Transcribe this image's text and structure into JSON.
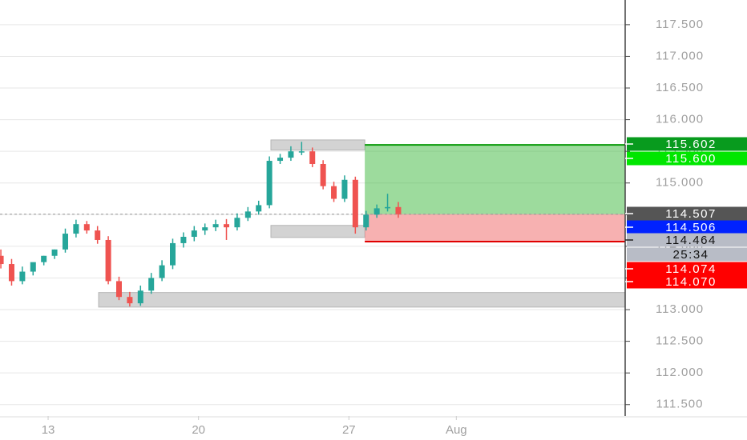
{
  "chart_data": {
    "type": "candlestick",
    "x": [
      10.8,
      11.3,
      11.8,
      12.3,
      12.8,
      13.3,
      13.8,
      14.3,
      14.8,
      15.3,
      15.8,
      16.3,
      16.8,
      17.3,
      17.8,
      18.3,
      18.8,
      19.3,
      19.8,
      20.3,
      20.8,
      21.3,
      21.8,
      22.3,
      22.8,
      23.3,
      23.8,
      24.3,
      24.8,
      25.3,
      25.8,
      26.3,
      26.8,
      27.3,
      27.8,
      28.3,
      28.8,
      29.3
    ],
    "open": [
      113.85,
      113.72,
      113.45,
      113.6,
      113.75,
      113.85,
      113.95,
      114.2,
      114.35,
      114.25,
      114.1,
      113.45,
      113.2,
      113.1,
      113.3,
      113.5,
      113.7,
      114.05,
      114.15,
      114.25,
      114.3,
      114.35,
      114.3,
      114.45,
      114.55,
      114.65,
      115.35,
      115.4,
      115.5,
      115.5,
      115.3,
      114.95,
      114.75,
      115.05,
      114.3,
      114.5,
      114.6,
      114.62
    ],
    "high": [
      113.95,
      113.8,
      113.68,
      113.7,
      113.85,
      113.95,
      114.28,
      114.42,
      114.4,
      114.32,
      114.16,
      113.52,
      113.28,
      113.38,
      113.58,
      113.78,
      114.12,
      114.22,
      114.32,
      114.36,
      114.42,
      114.43,
      114.52,
      114.62,
      114.72,
      115.42,
      115.46,
      115.58,
      115.65,
      115.56,
      115.36,
      115.02,
      115.12,
      115.1,
      114.56,
      114.66,
      114.83,
      114.7
    ],
    "low": [
      113.65,
      113.38,
      113.4,
      113.54,
      113.7,
      113.8,
      113.9,
      114.14,
      114.2,
      114.04,
      113.4,
      113.15,
      113.05,
      113.06,
      113.25,
      113.45,
      113.64,
      113.98,
      114.08,
      114.18,
      114.24,
      114.1,
      114.25,
      114.4,
      114.5,
      114.6,
      115.3,
      115.35,
      115.44,
      115.25,
      114.9,
      114.7,
      114.7,
      114.2,
      114.25,
      114.45,
      114.55,
      114.45
    ],
    "close": [
      113.72,
      113.45,
      113.6,
      113.75,
      113.85,
      113.95,
      114.2,
      114.35,
      114.25,
      114.1,
      113.45,
      113.2,
      113.1,
      113.3,
      113.5,
      113.7,
      114.05,
      114.15,
      114.25,
      114.3,
      114.35,
      114.3,
      114.45,
      114.55,
      114.65,
      115.35,
      115.4,
      115.5,
      115.5,
      115.3,
      114.95,
      114.75,
      115.05,
      114.3,
      114.5,
      114.6,
      114.62,
      114.507
    ],
    "up_color": "#26a69a",
    "down_color": "#ef5350",
    "xlim": [
      10.76,
      39.86
    ],
    "xticks": [
      13,
      20,
      27,
      {
        "value": 32,
        "label": "Aug"
      }
    ],
    "ylim": [
      111.32,
      117.89
    ],
    "yticks": [
      {
        "value": 111.5,
        "label": "111.500"
      },
      {
        "value": 112,
        "label": "112.000"
      },
      {
        "value": 112.5,
        "label": "112.500"
      },
      {
        "value": 113,
        "label": "113.000"
      },
      {
        "value": 113.5,
        "label": "113.500"
      },
      {
        "value": 114,
        "label": "114.000"
      },
      {
        "value": 114.5,
        "label": "114.500"
      },
      {
        "value": 115,
        "label": "115.000"
      },
      {
        "value": 115.5,
        "label": "115.500"
      },
      {
        "value": 116,
        "label": "116.000"
      },
      {
        "value": 116.5,
        "label": "116.500"
      },
      {
        "value": 117,
        "label": "117.000"
      },
      {
        "value": 117.5,
        "label": "117.500"
      }
    ],
    "grid": true,
    "zones": [
      {
        "x0": 23.37,
        "x1": 27.74,
        "top": 115.68,
        "bottom": 115.52
      },
      {
        "x0": 23.37,
        "x1": 27.74,
        "top": 114.33,
        "bottom": 114.14
      },
      {
        "x0": 15.35,
        "x1": 39.86,
        "top": 113.27,
        "bottom": 113.04
      }
    ],
    "position": {
      "start": 27.74,
      "entry": 114.507,
      "target": 115.602,
      "stop": 114.074
    },
    "price_labels": [
      {
        "value": 115.602,
        "color": "#089b1e"
      },
      {
        "value": 115.6,
        "label": "115.600",
        "color": "#00e600"
      },
      {
        "value": 114.507,
        "color": "#555555"
      },
      {
        "value": 114.506,
        "color": "#0022ff"
      },
      {
        "value": 114.464,
        "color": "#b8bcc6"
      },
      {
        "value": 114.074,
        "color": "#ff0000"
      },
      {
        "value": 114.07,
        "label": "114.070",
        "color": "#ff0000"
      }
    ],
    "countdown": "25:34"
  }
}
